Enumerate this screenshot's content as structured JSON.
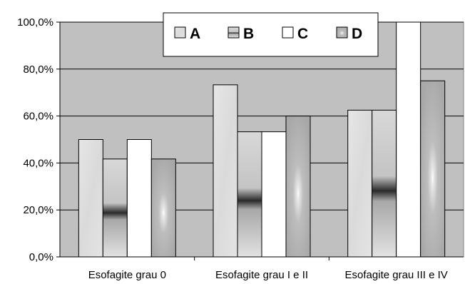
{
  "chart_data": {
    "type": "bar",
    "categories": [
      "Esofagite grau 0",
      "Esofagite grau I e II",
      "Esofagite grau III e IV"
    ],
    "series": [
      {
        "name": "A",
        "values": [
          50.0,
          73.3,
          62.5
        ]
      },
      {
        "name": "B",
        "values": [
          41.7,
          53.3,
          62.5
        ]
      },
      {
        "name": "C",
        "values": [
          50.0,
          53.3,
          100.0
        ]
      },
      {
        "name": "D",
        "values": [
          41.7,
          60.0,
          75.0
        ]
      }
    ],
    "yticks": [
      "0,0%",
      "20,0%",
      "40,0%",
      "60,0%",
      "80,0%",
      "100,0%"
    ],
    "ylim": [
      0,
      100
    ],
    "grid": true,
    "legend_position": "top",
    "colors": {
      "plot_background": "#c0c0c0",
      "A": "#e0e0e0",
      "B": "#bdbdbd",
      "C": "#ffffff",
      "D": "#b8b8b8"
    }
  }
}
